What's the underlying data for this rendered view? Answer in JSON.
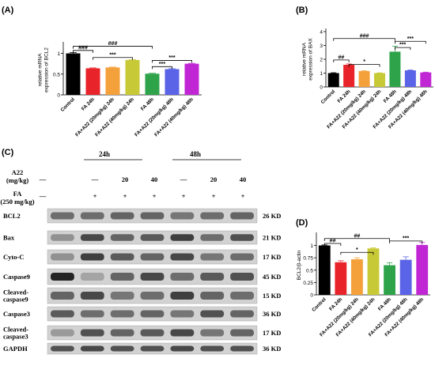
{
  "panels": {
    "A": {
      "label": "(A)"
    },
    "B": {
      "label": "(B)"
    },
    "C": {
      "label": "(C)"
    },
    "D": {
      "label": "(D)"
    }
  },
  "western_blot": {
    "dose_header": "A22\n(mg/kg)",
    "fa_header": "FA\n(250 mg/kg)",
    "time_groups": [
      "24h",
      "48h"
    ],
    "dose_row": [
      "—",
      "—",
      "20",
      "40",
      "—",
      "20",
      "40"
    ],
    "fa_row": [
      "—",
      "+",
      "+",
      "+",
      "+",
      "+",
      "+"
    ],
    "proteins": [
      {
        "name": "BCL2",
        "size": "26 KD"
      },
      {
        "name": "Bax",
        "size": "21 KD"
      },
      {
        "name": "Cyto-C",
        "size": "17 KD"
      },
      {
        "name": "Caspase9",
        "size": "45 KD"
      },
      {
        "name": "Cleaved-\ncaspase9",
        "size": "15 KD"
      },
      {
        "name": "Caspase3",
        "size": "36 KD"
      },
      {
        "name": "Cleaved-\ncaspase3",
        "size": "17 KD"
      },
      {
        "name": "GAPDH",
        "size": "36 KD"
      }
    ]
  },
  "chart_data": [
    {
      "panel": "A",
      "type": "bar",
      "ylabel": "relative mRNA\nexpression of BCL2",
      "ylim": [
        0,
        1.2
      ],
      "yticks": [
        0.0,
        0.5,
        1.0
      ],
      "categories": [
        "Control",
        "FA 24h",
        "FA+A22 (20mg/kg) 24h",
        "FA+A22 (40mg/kg) 24h",
        "FA 48h",
        "FA+A22 (20mg/kg) 48h",
        "FA+A22 (40mg/kg) 48h"
      ],
      "values": [
        1.0,
        0.64,
        0.66,
        0.84,
        0.51,
        0.62,
        0.75
      ],
      "errors": [
        0.02,
        0.01,
        0.01,
        0.01,
        0.01,
        0.01,
        0.01
      ],
      "colors": [
        "#000000",
        "#e8242a",
        "#f4a13b",
        "#c7c937",
        "#2ea34a",
        "#5b63e6",
        "#c026d3"
      ],
      "annotations": [
        {
          "from": 0,
          "to": 1,
          "level": 1.07,
          "text": "###"
        },
        {
          "from": 0,
          "to": 4,
          "level": 1.17,
          "text": "###"
        },
        {
          "from": 1,
          "to": 3,
          "level": 0.9,
          "text": "***"
        },
        {
          "from": 4,
          "to": 5,
          "level": 0.68,
          "text": "***"
        },
        {
          "from": 4,
          "to": 6,
          "level": 0.83,
          "text": "***"
        }
      ]
    },
    {
      "panel": "B",
      "type": "bar",
      "ylabel": "relative mRNA\nexpression of BAX",
      "ylim": [
        0,
        4
      ],
      "yticks": [
        0,
        1,
        2,
        3,
        4
      ],
      "categories": [
        "Control",
        "FA 24h",
        "FA+A22 (20mg/kg) 24h",
        "FA+A22 (40mg/kg) 24h",
        "FA 48h",
        "FA+A22 (20mg/kg) 48h",
        "FA+A22 (40mg/kg) 48h"
      ],
      "values": [
        1.0,
        1.6,
        1.15,
        1.0,
        2.55,
        1.2,
        1.05
      ],
      "errors": [
        0.03,
        0.06,
        0.02,
        0.02,
        0.4,
        0.03,
        0.02
      ],
      "colors": [
        "#000000",
        "#e8242a",
        "#f4a13b",
        "#c7c937",
        "#2ea34a",
        "#5b63e6",
        "#c026d3"
      ],
      "annotations": [
        {
          "from": 0,
          "to": 1,
          "level": 1.95,
          "text": "##"
        },
        {
          "from": 0,
          "to": 4,
          "level": 3.5,
          "text": "###"
        },
        {
          "from": 1,
          "to": 3,
          "level": 1.62,
          "text": "*"
        },
        {
          "from": 4,
          "to": 5,
          "level": 2.85,
          "text": "***"
        },
        {
          "from": 4,
          "to": 6,
          "level": 3.3,
          "text": "***"
        }
      ]
    },
    {
      "panel": "D",
      "type": "bar",
      "ylabel": "BCL2/β-actin",
      "ylim": [
        0,
        1.2
      ],
      "yticks": [
        0.0,
        0.25,
        0.5,
        0.75,
        1.0
      ],
      "categories": [
        "Control",
        "FA 24h",
        "FA+A22 (20mg/kg) 24h",
        "FA+A22 (40mg/kg) 24h",
        "FA 48h",
        "FA+A22 (20mg/kg) 48h",
        "FA+A22 (40mg/kg) 48h"
      ],
      "values": [
        1.0,
        0.66,
        0.72,
        0.94,
        0.6,
        0.71,
        1.01
      ],
      "errors": [
        0.01,
        0.03,
        0.03,
        0.01,
        0.05,
        0.06,
        0.05
      ],
      "colors": [
        "#000000",
        "#e8242a",
        "#f4a13b",
        "#c7c937",
        "#2ea34a",
        "#5b63e6",
        "#c026d3"
      ],
      "annotations": [
        {
          "from": 0,
          "to": 1,
          "level": 1.04,
          "text": "##"
        },
        {
          "from": 0,
          "to": 4,
          "level": 1.14,
          "text": "##"
        },
        {
          "from": 1,
          "to": 3,
          "level": 0.86,
          "text": "*"
        },
        {
          "from": 4,
          "to": 6,
          "level": 1.09,
          "text": "***"
        }
      ]
    }
  ]
}
